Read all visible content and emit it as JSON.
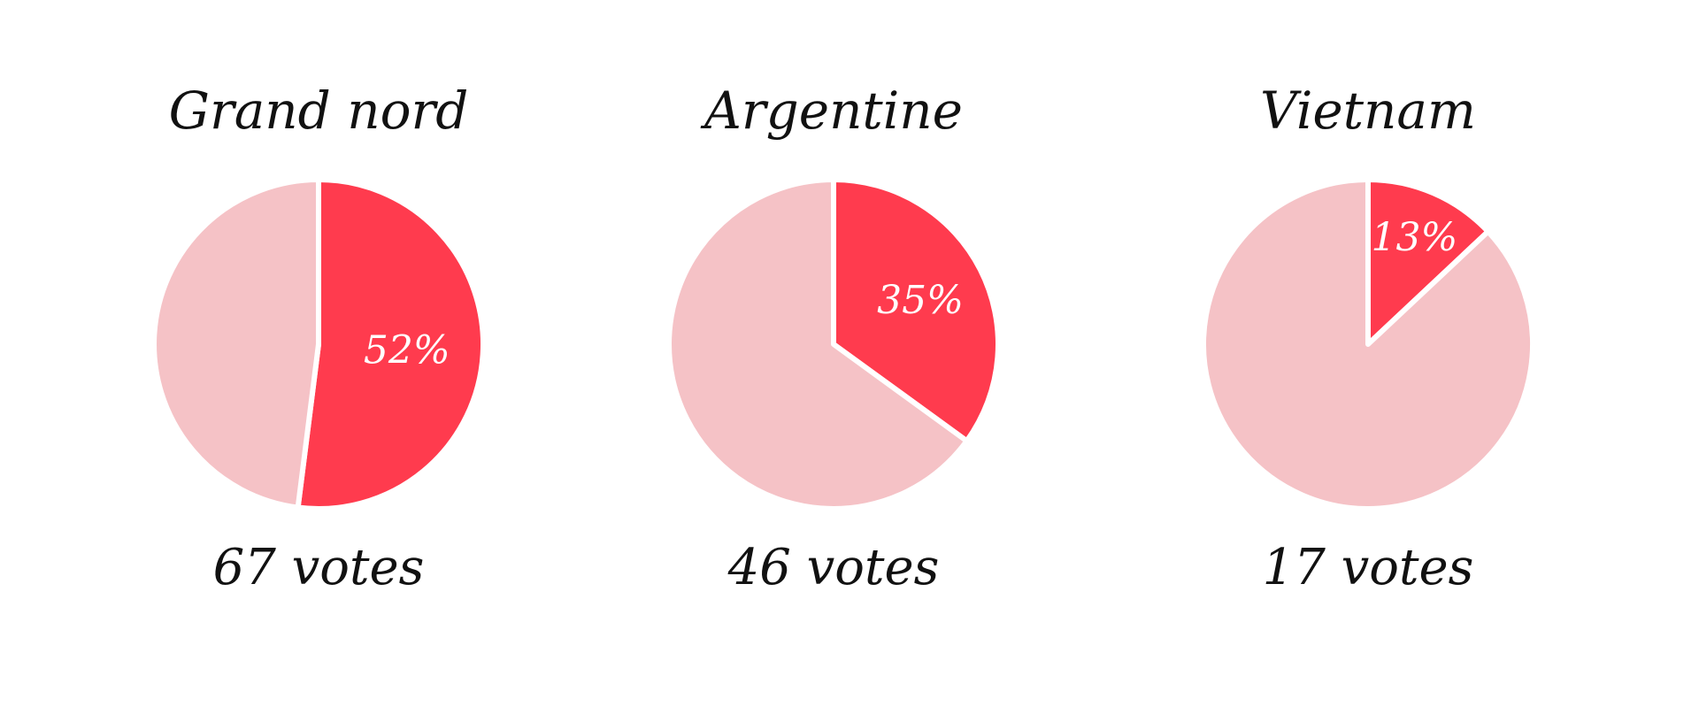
{
  "colors": {
    "highlight": "#ff3b4e",
    "remainder": "#f5c2c6",
    "background": "#ffffff",
    "text": "#111111",
    "label_on_slice": "#ffffff"
  },
  "chart_data": [
    {
      "type": "pie",
      "title": "Grand nord",
      "categories": [
        "",
        ""
      ],
      "values": [
        52,
        48
      ],
      "highlight_label": "52%",
      "votes_label": "67 votes",
      "votes": 67,
      "start_angle_deg": 0,
      "direction": "clockwise"
    },
    {
      "type": "pie",
      "title": "Argentine",
      "categories": [
        "",
        ""
      ],
      "values": [
        35,
        65
      ],
      "highlight_label": "35%",
      "votes_label": "46 votes",
      "votes": 46,
      "start_angle_deg": 0,
      "direction": "clockwise"
    },
    {
      "type": "pie",
      "title": "Vietnam",
      "categories": [
        "",
        ""
      ],
      "values": [
        13,
        87
      ],
      "highlight_label": "13%",
      "votes_label": "17 votes",
      "votes": 17,
      "start_angle_deg": 0,
      "direction": "clockwise"
    }
  ]
}
